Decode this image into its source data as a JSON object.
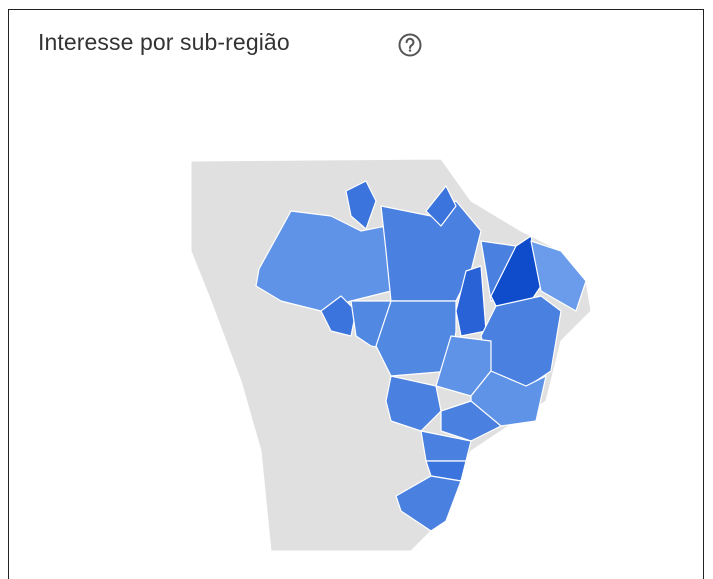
{
  "header": {
    "title": "Interesse por sub-região"
  }
}
